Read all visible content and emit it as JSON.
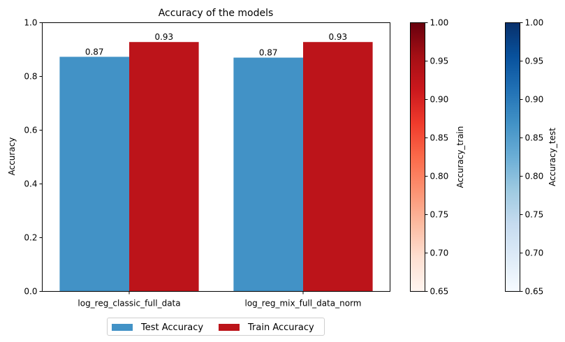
{
  "chart_data": {
    "type": "bar",
    "title": "Accuracy of the models",
    "ylabel": "Accuracy",
    "xlabel": "",
    "ylim": [
      0,
      1
    ],
    "yticks": [
      "0.0",
      "0.2",
      "0.4",
      "0.6",
      "0.8",
      "1.0"
    ],
    "categories": [
      "log_reg_classic_full_data",
      "log_reg_mix_full_data_norm"
    ],
    "series": [
      {
        "name": "Test Accuracy",
        "values": [
          0.873,
          0.87
        ],
        "labels": [
          "0.87",
          "0.87"
        ],
        "color": "#4292c6"
      },
      {
        "name": "Train Accuracy",
        "values": [
          0.928,
          0.928
        ],
        "labels": [
          "0.93",
          "0.93"
        ],
        "color": "#bc141a"
      }
    ],
    "legend_position": "bottom-center",
    "grid": false,
    "colorbars": [
      {
        "label": "Accuracy_train",
        "colormap": "Reds",
        "range": [
          0.65,
          1.0
        ],
        "ticks": [
          "0.65",
          "0.70",
          "0.75",
          "0.80",
          "0.85",
          "0.90",
          "0.95",
          "1.00"
        ],
        "colors": [
          "#fff5f0",
          "#fee0d2",
          "#fcbba1",
          "#fc9272",
          "#fb6a4a",
          "#ef3b2c",
          "#cb181d",
          "#a50f15",
          "#67000d"
        ]
      },
      {
        "label": "Accuracy_test",
        "colormap": "Blues",
        "range": [
          0.65,
          1.0
        ],
        "ticks": [
          "0.65",
          "0.70",
          "0.75",
          "0.80",
          "0.85",
          "0.90",
          "0.95",
          "1.00"
        ],
        "colors": [
          "#f7fbff",
          "#deebf7",
          "#c6dbef",
          "#9ecae1",
          "#6baed6",
          "#4292c6",
          "#2171b5",
          "#08519c",
          "#08306b"
        ]
      }
    ]
  }
}
